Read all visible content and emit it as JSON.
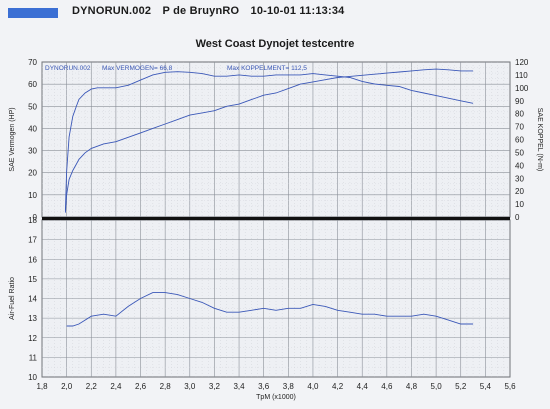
{
  "header": {
    "file": "DYNORUN.002",
    "operator": "P de BruynRO",
    "datetime": "10-10-01 11:13:34"
  },
  "chart_data": [
    {
      "type": "line",
      "title": "West Coast Dynojet testcentre",
      "annotations": {
        "run": "DYNORUN.002",
        "max_power": "Max VERMOGEN= 66,8",
        "max_torque": "Max KOPPELMENT= 112,5"
      },
      "xlabel": "TpM (x1000)",
      "xlim": [
        1.8,
        5.6
      ],
      "x_ticks": [
        "1,8",
        "2,0",
        "2,2",
        "2,4",
        "2,6",
        "2,8",
        "3,0",
        "3,2",
        "3,4",
        "3,6",
        "3,8",
        "4,0",
        "4,2",
        "4,4",
        "4,6",
        "4,8",
        "5,0",
        "5,2",
        "5,4",
        "5,6"
      ],
      "ylabel_left": "SAE Vermogen (HP)",
      "ylim_left": [
        0,
        70
      ],
      "y_ticks_left": [
        "0",
        "10",
        "20",
        "30",
        "40",
        "50",
        "60",
        "70"
      ],
      "ylabel_right": "SAE KOPPEL (N-m)",
      "ylim_right": [
        0,
        120
      ],
      "y_ticks_right": [
        "0",
        "10",
        "20",
        "30",
        "40",
        "50",
        "60",
        "70",
        "80",
        "90",
        "100",
        "110",
        "120"
      ],
      "grid": true,
      "series": [
        {
          "axis": "left",
          "color": "#3b58b8",
          "x": [
            1.99,
            2.0,
            2.02,
            2.05,
            2.08,
            2.1,
            2.15,
            2.2,
            2.3,
            2.4,
            2.5,
            2.6,
            2.7,
            2.8,
            2.9,
            3.0,
            3.1,
            3.2,
            3.3,
            3.4,
            3.5,
            3.6,
            3.7,
            3.8,
            3.9,
            4.0,
            4.1,
            4.2,
            4.3,
            4.4,
            4.5,
            4.6,
            4.7,
            4.8,
            4.9,
            5.0,
            5.1,
            5.2,
            5.3
          ],
          "y": [
            2,
            10,
            17,
            21,
            24,
            26,
            29,
            31,
            33,
            34,
            36,
            38,
            40,
            42,
            44,
            46,
            47,
            48,
            50,
            51,
            53,
            55,
            56,
            58,
            60,
            61,
            62,
            63,
            63.5,
            64,
            64.5,
            65,
            65.5,
            66,
            66.5,
            66.8,
            66.5,
            66,
            66
          ]
        },
        {
          "axis": "right",
          "color": "#3b58b8",
          "x": [
            1.99,
            2.0,
            2.02,
            2.05,
            2.08,
            2.1,
            2.15,
            2.2,
            2.25,
            2.3,
            2.4,
            2.5,
            2.6,
            2.7,
            2.8,
            2.9,
            3.0,
            3.1,
            3.2,
            3.3,
            3.4,
            3.5,
            3.6,
            3.7,
            3.8,
            3.9,
            4.0,
            4.1,
            4.2,
            4.3,
            4.4,
            4.5,
            4.6,
            4.7,
            4.8,
            4.9,
            5.0,
            5.1,
            5.2,
            5.3
          ],
          "y": [
            5,
            35,
            62,
            78,
            86,
            91,
            96,
            99,
            100,
            100,
            100,
            102,
            106,
            110,
            112,
            112.5,
            112,
            111,
            109,
            109,
            110,
            109,
            109,
            110,
            110,
            110,
            111,
            110,
            109,
            108,
            105,
            103,
            102,
            101,
            98,
            96,
            94,
            92,
            90,
            88
          ]
        }
      ]
    },
    {
      "type": "line",
      "xlabel": "TpM (x1000)",
      "xlim": [
        1.8,
        5.6
      ],
      "x_ticks": [
        "1,8",
        "2,0",
        "2,2",
        "2,4",
        "2,6",
        "2,8",
        "3,0",
        "3,2",
        "3,4",
        "3,6",
        "3,8",
        "4,0",
        "4,2",
        "4,4",
        "4,6",
        "4,8",
        "5,0",
        "5,2",
        "5,4",
        "5,6"
      ],
      "ylabel": "Air-Fuel Ratio",
      "ylim": [
        10,
        18
      ],
      "y_ticks": [
        "10",
        "11",
        "12",
        "13",
        "14",
        "15",
        "16",
        "17",
        "18"
      ],
      "grid": true,
      "series": [
        {
          "color": "#3b58b8",
          "x": [
            2.0,
            2.05,
            2.1,
            2.15,
            2.2,
            2.3,
            2.4,
            2.5,
            2.6,
            2.7,
            2.8,
            2.9,
            3.0,
            3.1,
            3.2,
            3.3,
            3.4,
            3.5,
            3.6,
            3.7,
            3.8,
            3.9,
            4.0,
            4.1,
            4.2,
            4.3,
            4.4,
            4.5,
            4.6,
            4.7,
            4.8,
            4.9,
            5.0,
            5.1,
            5.2,
            5.3
          ],
          "y": [
            12.6,
            12.6,
            12.7,
            12.9,
            13.1,
            13.2,
            13.1,
            13.6,
            14.0,
            14.3,
            14.3,
            14.2,
            14.0,
            13.8,
            13.5,
            13.3,
            13.3,
            13.4,
            13.5,
            13.4,
            13.5,
            13.5,
            13.7,
            13.6,
            13.4,
            13.3,
            13.2,
            13.2,
            13.1,
            13.1,
            13.1,
            13.2,
            13.1,
            12.9,
            12.7,
            12.7
          ]
        }
      ]
    }
  ]
}
